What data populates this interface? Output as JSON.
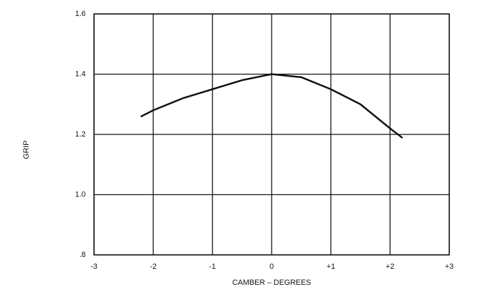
{
  "chart_data": {
    "type": "line",
    "x_label": "CAMBER – DEGREES",
    "y_label": "GRIP",
    "x": [
      -2.2,
      -2,
      -1.5,
      -1,
      -0.5,
      0,
      0.5,
      1,
      1.5,
      2,
      2.2
    ],
    "series": [
      {
        "color": "#111111",
        "values": [
          1.26,
          1.28,
          1.32,
          1.35,
          1.38,
          1.4,
          1.39,
          1.35,
          1.3,
          1.22,
          1.19
        ]
      }
    ],
    "xlim": [
      -3,
      3
    ],
    "xticks": [
      -3,
      -2,
      -1,
      0,
      {
        "value": 1,
        "label": "+1"
      },
      {
        "value": 2,
        "label": "+2"
      },
      {
        "value": 3,
        "label": "+3"
      }
    ],
    "ylim": [
      0.8,
      1.6
    ],
    "yticks": [
      {
        "value": 0.8,
        "label": ".8"
      },
      {
        "value": 1.0,
        "label": "1.0"
      },
      1.2,
      1.4,
      1.6
    ],
    "grid": true
  }
}
